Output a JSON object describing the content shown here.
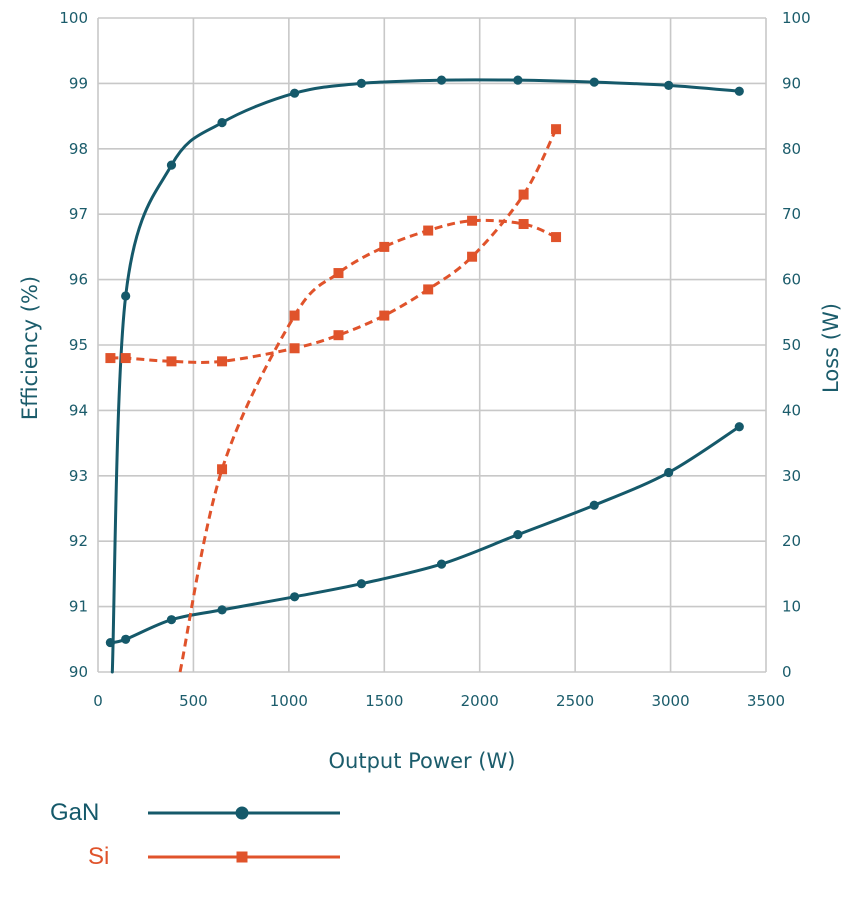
{
  "chart_data": {
    "type": "line",
    "xlabel": "Output Power (W)",
    "ylabel_left": "Efficiency (%)",
    "ylabel_right": "Loss (W)",
    "xlim": [
      0,
      3500
    ],
    "ylim_left": [
      90,
      100
    ],
    "ylim_right": [
      0,
      100
    ],
    "grid": true,
    "legend_position": "bottom-left",
    "colors": {
      "GaN": "#15596a",
      "Si": "#e0532b",
      "axis_text": "#1b5c6b"
    },
    "x_ticks": [
      0,
      500,
      1000,
      1500,
      2000,
      2500,
      3000,
      3500
    ],
    "y_left_ticks": [
      90,
      91,
      92,
      93,
      94,
      95,
      96,
      97,
      98,
      99,
      100
    ],
    "y_right_ticks": [
      0,
      10,
      20,
      30,
      40,
      50,
      60,
      70,
      80,
      90,
      100
    ],
    "series": [
      {
        "name": "GaN",
        "metric": "efficiency",
        "axis": "left",
        "style": "solid",
        "marker": "circle",
        "curve_start": [
          75,
          90
        ],
        "x": [
          145,
          385,
          650,
          1030,
          1380,
          1800,
          2200,
          2600,
          2990,
          3360
        ],
        "values": [
          95.75,
          97.75,
          98.4,
          98.85,
          99.0,
          99.05,
          99.05,
          99.02,
          98.97,
          98.88
        ]
      },
      {
        "name": "GaN",
        "metric": "loss",
        "axis": "right",
        "style": "solid",
        "marker": "circle",
        "x": [
          65,
          145,
          385,
          650,
          1030,
          1380,
          1800,
          2200,
          2600,
          2990,
          3360
        ],
        "values": [
          4.5,
          5.0,
          8.0,
          9.5,
          11.5,
          13.5,
          16.5,
          21.0,
          25.5,
          30.5,
          37.5
        ]
      },
      {
        "name": "Si",
        "metric": "efficiency",
        "axis": "left",
        "style": "dashed",
        "marker": "square",
        "curve_start": [
          430,
          90
        ],
        "x": [
          650,
          1030,
          1260,
          1500,
          1730,
          1960,
          2230,
          2400
        ],
        "values": [
          93.1,
          95.45,
          96.1,
          96.5,
          96.75,
          96.9,
          96.85,
          96.65
        ]
      },
      {
        "name": "Si",
        "metric": "loss",
        "axis": "right",
        "style": "dashed",
        "marker": "square",
        "x": [
          65,
          145,
          385,
          650,
          1030,
          1260,
          1500,
          1730,
          1960,
          2230,
          2400
        ],
        "values": [
          48.0,
          48.0,
          47.5,
          47.5,
          49.5,
          51.5,
          54.5,
          58.5,
          63.5,
          73.0,
          83.0
        ]
      }
    ],
    "legend": [
      {
        "label": "GaN",
        "marker": "circle",
        "color": "#15596a"
      },
      {
        "label": "Si",
        "marker": "square",
        "color": "#e0532b"
      }
    ]
  }
}
